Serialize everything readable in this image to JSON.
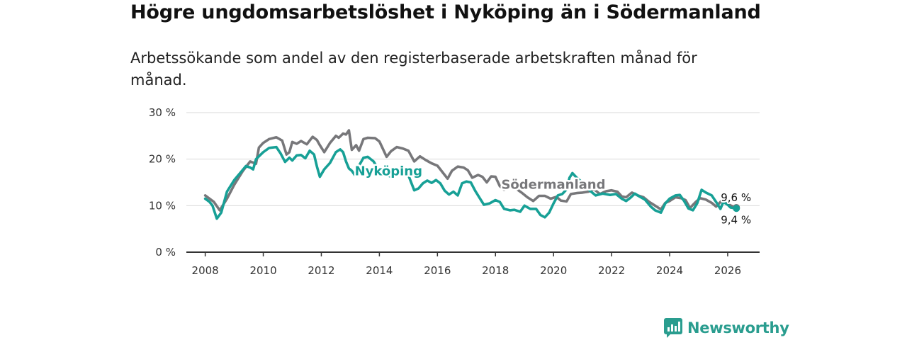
{
  "title": "Högre ungdomsarbetslöshet i Nyköping än i Södermanland",
  "subtitle": "Arbetssökande som andel av den registerbaserade arbetskraften månad för månad.",
  "brand": {
    "name": "Newsworthy",
    "icon": "newsworthy-logo-icon"
  },
  "colors": {
    "nykoping": "#17a096",
    "sodermanland": "#77777a",
    "grid": "#d9d9d9",
    "axis": "#333333"
  },
  "chart_data": {
    "type": "line",
    "title": "Högre ungdomsarbetslöshet i Nyköping än i Södermanland",
    "xlabel": "",
    "ylabel": "",
    "xlim": [
      2007.35,
      2027.1
    ],
    "ylim": [
      0,
      30
    ],
    "x_ticks": [
      2008,
      2010,
      2012,
      2014,
      2016,
      2018,
      2020,
      2022,
      2024,
      2026
    ],
    "x_tick_labels": [
      "2008",
      "2010",
      "2012",
      "2014",
      "2016",
      "2018",
      "2020",
      "2022",
      "2024",
      "2026"
    ],
    "y_ticks": [
      0,
      10,
      20,
      30
    ],
    "y_tick_labels": [
      "0 %",
      "10 %",
      "20 %",
      "30 %"
    ],
    "grid": true,
    "series": [
      {
        "name": "Södermanland",
        "label": "Södermanland",
        "color": "#77777a",
        "end_label": "9,6 %",
        "points": [
          [
            2008.0,
            12.2
          ],
          [
            2008.3,
            10.8
          ],
          [
            2008.5,
            9.0
          ],
          [
            2008.75,
            11.5
          ],
          [
            2009.0,
            14.5
          ],
          [
            2009.3,
            17.5
          ],
          [
            2009.55,
            19.5
          ],
          [
            2009.75,
            19.0
          ],
          [
            2009.85,
            22.5
          ],
          [
            2010.0,
            23.5
          ],
          [
            2010.2,
            24.3
          ],
          [
            2010.45,
            24.7
          ],
          [
            2010.65,
            24.0
          ],
          [
            2010.8,
            21.0
          ],
          [
            2010.9,
            21.5
          ],
          [
            2011.0,
            23.7
          ],
          [
            2011.15,
            23.3
          ],
          [
            2011.3,
            23.9
          ],
          [
            2011.5,
            23.2
          ],
          [
            2011.7,
            24.8
          ],
          [
            2011.85,
            24.1
          ],
          [
            2011.95,
            23.0
          ],
          [
            2012.1,
            21.5
          ],
          [
            2012.3,
            23.5
          ],
          [
            2012.5,
            25.0
          ],
          [
            2012.6,
            24.6
          ],
          [
            2012.75,
            25.5
          ],
          [
            2012.85,
            25.3
          ],
          [
            2012.95,
            26.2
          ],
          [
            2013.05,
            22.0
          ],
          [
            2013.2,
            23.0
          ],
          [
            2013.3,
            21.8
          ],
          [
            2013.45,
            24.3
          ],
          [
            2013.6,
            24.6
          ],
          [
            2013.85,
            24.5
          ],
          [
            2014.0,
            23.8
          ],
          [
            2014.1,
            22.5
          ],
          [
            2014.25,
            20.5
          ],
          [
            2014.4,
            21.7
          ],
          [
            2014.6,
            22.6
          ],
          [
            2014.8,
            22.3
          ],
          [
            2015.0,
            21.8
          ],
          [
            2015.2,
            19.5
          ],
          [
            2015.4,
            20.6
          ],
          [
            2015.6,
            19.8
          ],
          [
            2015.8,
            19.1
          ],
          [
            2016.0,
            18.6
          ],
          [
            2016.2,
            17.0
          ],
          [
            2016.35,
            15.8
          ],
          [
            2016.5,
            17.5
          ],
          [
            2016.7,
            18.4
          ],
          [
            2016.9,
            18.2
          ],
          [
            2017.05,
            17.6
          ],
          [
            2017.2,
            16.0
          ],
          [
            2017.4,
            16.6
          ],
          [
            2017.55,
            16.2
          ],
          [
            2017.7,
            15.0
          ],
          [
            2017.85,
            16.3
          ],
          [
            2018.0,
            16.2
          ],
          [
            2018.15,
            14.2
          ],
          [
            2018.3,
            13.4
          ],
          [
            2018.5,
            14.0
          ],
          [
            2018.7,
            13.7
          ],
          [
            2018.9,
            12.8
          ],
          [
            2019.1,
            11.8
          ],
          [
            2019.3,
            11.0
          ],
          [
            2019.5,
            12.1
          ],
          [
            2019.7,
            12.1
          ],
          [
            2019.9,
            11.5
          ],
          [
            2020.1,
            11.9
          ],
          [
            2020.25,
            11.1
          ],
          [
            2020.45,
            10.9
          ],
          [
            2020.6,
            12.5
          ],
          [
            2020.8,
            12.7
          ],
          [
            2021.0,
            12.8
          ],
          [
            2021.2,
            13.0
          ],
          [
            2021.4,
            13.5
          ],
          [
            2021.6,
            12.5
          ],
          [
            2021.8,
            13.1
          ],
          [
            2022.0,
            13.3
          ],
          [
            2022.2,
            13.0
          ],
          [
            2022.35,
            12.0
          ],
          [
            2022.5,
            11.8
          ],
          [
            2022.7,
            12.8
          ],
          [
            2022.9,
            12.2
          ],
          [
            2023.1,
            11.8
          ],
          [
            2023.3,
            10.8
          ],
          [
            2023.5,
            10.0
          ],
          [
            2023.7,
            9.2
          ],
          [
            2023.85,
            10.6
          ],
          [
            2024.0,
            11.0
          ],
          [
            2024.2,
            11.8
          ],
          [
            2024.4,
            11.6
          ],
          [
            2024.55,
            11.2
          ],
          [
            2024.7,
            9.5
          ],
          [
            2024.9,
            10.8
          ],
          [
            2025.05,
            11.6
          ],
          [
            2025.25,
            11.3
          ],
          [
            2025.45,
            10.6
          ],
          [
            2025.6,
            9.8
          ],
          [
            2025.8,
            11.1
          ],
          [
            2025.95,
            10.5
          ],
          [
            2026.15,
            9.9
          ],
          [
            2026.3,
            9.6
          ]
        ]
      },
      {
        "name": "Nyköping",
        "label": "Nyköping",
        "color": "#17a096",
        "end_label": "9,4 %",
        "points": [
          [
            2008.0,
            11.5
          ],
          [
            2008.15,
            10.8
          ],
          [
            2008.25,
            10.0
          ],
          [
            2008.4,
            7.2
          ],
          [
            2008.55,
            8.5
          ],
          [
            2008.75,
            13.0
          ],
          [
            2009.0,
            15.5
          ],
          [
            2009.2,
            17.0
          ],
          [
            2009.4,
            18.5
          ],
          [
            2009.55,
            18.2
          ],
          [
            2009.65,
            17.8
          ],
          [
            2009.75,
            20.0
          ],
          [
            2010.0,
            21.5
          ],
          [
            2010.2,
            22.4
          ],
          [
            2010.45,
            22.6
          ],
          [
            2010.6,
            21.2
          ],
          [
            2010.75,
            19.4
          ],
          [
            2010.9,
            20.3
          ],
          [
            2011.0,
            19.7
          ],
          [
            2011.15,
            20.8
          ],
          [
            2011.3,
            20.9
          ],
          [
            2011.45,
            20.2
          ],
          [
            2011.6,
            21.8
          ],
          [
            2011.75,
            21.0
          ],
          [
            2011.85,
            18.4
          ],
          [
            2011.95,
            16.2
          ],
          [
            2012.1,
            17.8
          ],
          [
            2012.3,
            19.2
          ],
          [
            2012.5,
            21.5
          ],
          [
            2012.65,
            22.1
          ],
          [
            2012.75,
            21.5
          ],
          [
            2012.85,
            19.5
          ],
          [
            2012.95,
            18.0
          ],
          [
            2013.05,
            17.5
          ],
          [
            2013.15,
            16.6
          ],
          [
            2013.3,
            18.6
          ],
          [
            2013.45,
            20.3
          ],
          [
            2013.6,
            20.5
          ],
          [
            2013.8,
            19.5
          ],
          [
            2014.0,
            17.5
          ],
          [
            2014.2,
            16.8
          ],
          [
            2014.4,
            16.2
          ],
          [
            2014.6,
            17.0
          ],
          [
            2014.8,
            16.5
          ],
          [
            2015.0,
            16.5
          ],
          [
            2015.2,
            13.3
          ],
          [
            2015.35,
            13.7
          ],
          [
            2015.5,
            14.8
          ],
          [
            2015.65,
            15.4
          ],
          [
            2015.8,
            14.9
          ],
          [
            2015.95,
            15.5
          ],
          [
            2016.1,
            14.8
          ],
          [
            2016.25,
            13.2
          ],
          [
            2016.4,
            12.4
          ],
          [
            2016.55,
            13.0
          ],
          [
            2016.7,
            12.2
          ],
          [
            2016.85,
            14.8
          ],
          [
            2017.0,
            15.2
          ],
          [
            2017.15,
            15.0
          ],
          [
            2017.3,
            13.2
          ],
          [
            2017.45,
            11.7
          ],
          [
            2017.6,
            10.2
          ],
          [
            2017.8,
            10.5
          ],
          [
            2018.0,
            11.2
          ],
          [
            2018.15,
            10.8
          ],
          [
            2018.3,
            9.3
          ],
          [
            2018.5,
            9.0
          ],
          [
            2018.65,
            9.1
          ],
          [
            2018.85,
            8.7
          ],
          [
            2019.0,
            10.0
          ],
          [
            2019.2,
            9.3
          ],
          [
            2019.4,
            9.3
          ],
          [
            2019.55,
            8.0
          ],
          [
            2019.7,
            7.5
          ],
          [
            2019.85,
            8.5
          ],
          [
            2020.0,
            10.5
          ],
          [
            2020.15,
            12.2
          ],
          [
            2020.3,
            12.5
          ],
          [
            2020.45,
            13.5
          ],
          [
            2020.55,
            16.0
          ],
          [
            2020.65,
            17.0
          ],
          [
            2020.8,
            16.0
          ],
          [
            2020.95,
            15.2
          ],
          [
            2021.2,
            13.5
          ],
          [
            2021.45,
            12.2
          ],
          [
            2021.7,
            12.6
          ],
          [
            2021.95,
            12.3
          ],
          [
            2022.15,
            12.5
          ],
          [
            2022.35,
            11.5
          ],
          [
            2022.5,
            11.0
          ],
          [
            2022.65,
            11.7
          ],
          [
            2022.8,
            12.6
          ],
          [
            2022.95,
            12.0
          ],
          [
            2023.15,
            11.3
          ],
          [
            2023.35,
            9.8
          ],
          [
            2023.5,
            9.0
          ],
          [
            2023.7,
            8.5
          ],
          [
            2023.85,
            10.5
          ],
          [
            2024.0,
            11.5
          ],
          [
            2024.2,
            12.2
          ],
          [
            2024.35,
            12.3
          ],
          [
            2024.5,
            11.0
          ],
          [
            2024.65,
            9.4
          ],
          [
            2024.8,
            9.0
          ],
          [
            2024.95,
            10.5
          ],
          [
            2025.1,
            13.4
          ],
          [
            2025.25,
            12.8
          ],
          [
            2025.45,
            12.2
          ],
          [
            2025.6,
            10.8
          ],
          [
            2025.75,
            9.3
          ],
          [
            2025.85,
            10.8
          ],
          [
            2026.0,
            10.2
          ],
          [
            2026.1,
            9.6
          ],
          [
            2026.3,
            9.4
          ]
        ]
      }
    ]
  }
}
